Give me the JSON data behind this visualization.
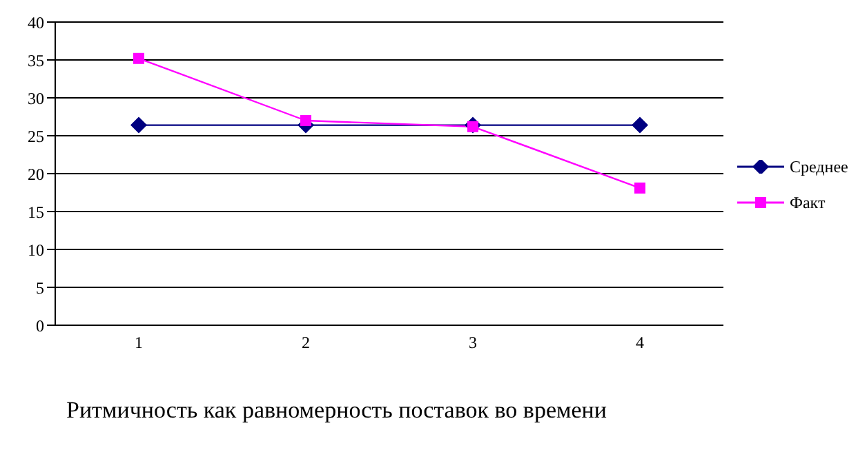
{
  "chart_data": {
    "type": "line",
    "title": "Ритмичность как равномерность поставок во времени",
    "categories": [
      "1",
      "2",
      "3",
      "4"
    ],
    "series": [
      {
        "name": "Среднее",
        "color": "#000080",
        "values": [
          26.4,
          26.4,
          26.4,
          26.4
        ],
        "marker": "diamond"
      },
      {
        "name": "Факт",
        "color": "#ff00ff",
        "values": [
          35.2,
          27,
          26.2,
          18.1
        ],
        "marker": "square"
      }
    ],
    "ylim": [
      0,
      40
    ],
    "yticks": [
      0,
      5,
      10,
      15,
      20,
      25,
      30,
      35,
      40
    ],
    "grid": "y",
    "legend": "right",
    "line_style": "solid"
  }
}
